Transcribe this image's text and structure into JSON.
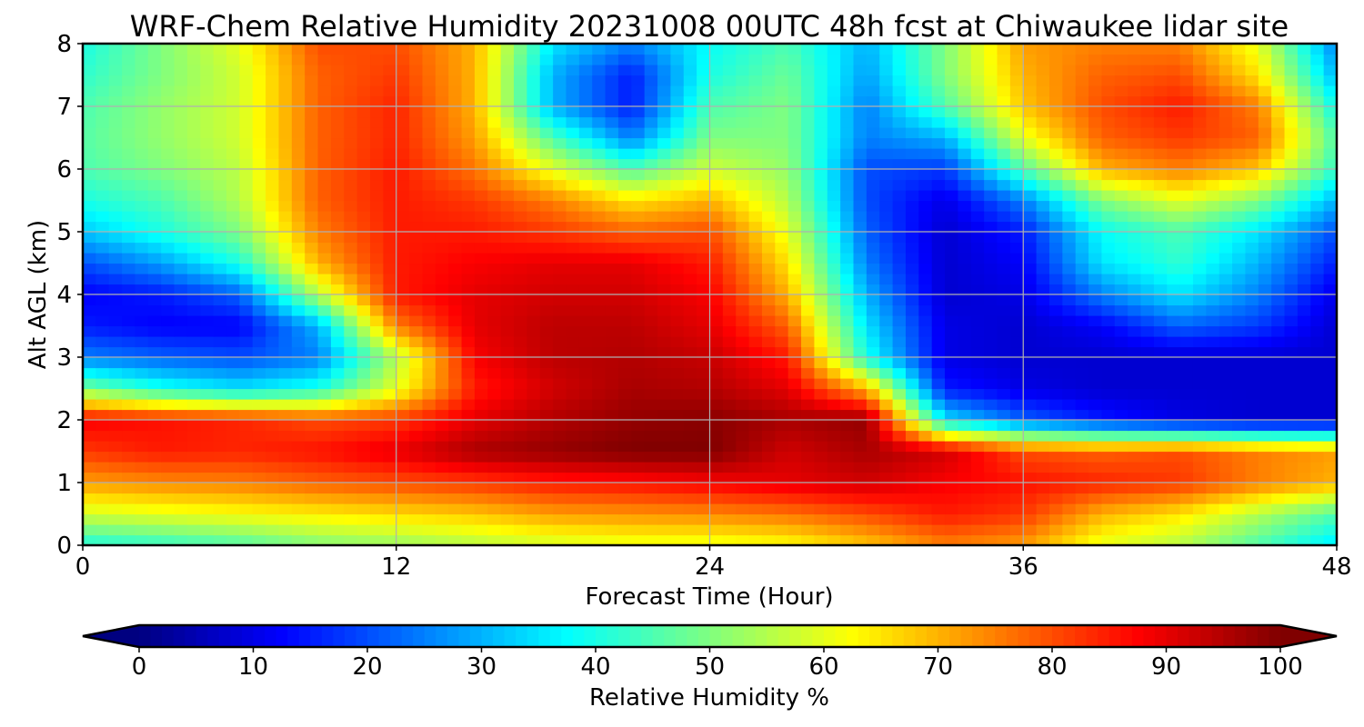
{
  "chart_data": {
    "type": "heatmap",
    "title": "WRF-Chem Relative Humidity 20231008 00UTC 48h fcst at Chiwaukee lidar site",
    "xlabel": "Forecast Time (Hour)",
    "ylabel": "Alt AGL (km)",
    "xlim": [
      0,
      48
    ],
    "ylim": [
      0,
      8
    ],
    "xticks": [
      0,
      12,
      24,
      36,
      48
    ],
    "yticks": [
      0,
      1,
      2,
      3,
      4,
      5,
      6,
      7,
      8
    ],
    "grid": true,
    "colormap": "jet",
    "z_units": "Relative Humidity %",
    "colorbar": {
      "label": "Relative Humidity %",
      "range": [
        0,
        100
      ],
      "ticks": [
        0,
        10,
        20,
        30,
        40,
        50,
        60,
        70,
        80,
        90,
        100
      ],
      "extend": "both",
      "orientation": "horizontal",
      "placement": "bottom"
    },
    "x": [
      0,
      3,
      6,
      9,
      12,
      15,
      18,
      21,
      24,
      27,
      30,
      33,
      36,
      39,
      42,
      45,
      48
    ],
    "y": [
      0,
      0.5,
      1,
      1.5,
      2,
      2.5,
      3,
      3.5,
      4,
      4.5,
      5,
      5.5,
      6,
      6.5,
      7,
      7.5,
      8
    ],
    "z": [
      [
        40,
        42,
        45,
        50,
        52,
        55,
        58,
        60,
        60,
        62,
        68,
        75,
        72,
        60,
        55,
        45,
        35
      ],
      [
        58,
        60,
        62,
        64,
        66,
        68,
        72,
        73,
        74,
        76,
        80,
        85,
        82,
        70,
        65,
        55,
        45
      ],
      [
        72,
        74,
        75,
        78,
        80,
        82,
        85,
        86,
        88,
        90,
        92,
        88,
        86,
        84,
        82,
        75,
        70
      ],
      [
        82,
        85,
        84,
        86,
        90,
        96,
        98,
        100,
        100,
        92,
        96,
        92,
        80,
        78,
        80,
        75,
        72
      ],
      [
        88,
        86,
        84,
        80,
        82,
        90,
        95,
        98,
        99,
        96,
        98,
        35,
        22,
        15,
        10,
        8,
        8
      ],
      [
        50,
        40,
        35,
        40,
        60,
        85,
        92,
        96,
        95,
        90,
        70,
        15,
        10,
        8,
        8,
        8,
        8
      ],
      [
        25,
        22,
        20,
        25,
        55,
        88,
        94,
        95,
        93,
        85,
        40,
        10,
        8,
        8,
        8,
        8,
        8
      ],
      [
        15,
        12,
        12,
        30,
        75,
        90,
        94,
        94,
        90,
        78,
        35,
        10,
        8,
        12,
        22,
        18,
        8
      ],
      [
        12,
        15,
        22,
        55,
        85,
        90,
        92,
        92,
        88,
        70,
        30,
        8,
        10,
        25,
        35,
        25,
        10
      ],
      [
        20,
        28,
        40,
        70,
        85,
        88,
        90,
        90,
        85,
        65,
        25,
        8,
        12,
        35,
        42,
        30,
        15
      ],
      [
        32,
        40,
        50,
        75,
        85,
        85,
        82,
        78,
        80,
        60,
        22,
        8,
        15,
        38,
        45,
        35,
        20
      ],
      [
        40,
        45,
        55,
        78,
        85,
        82,
        75,
        65,
        70,
        55,
        20,
        10,
        25,
        50,
        60,
        50,
        30
      ],
      [
        45,
        50,
        56,
        78,
        85,
        76,
        60,
        45,
        58,
        52,
        20,
        18,
        45,
        70,
        75,
        68,
        42
      ],
      [
        46,
        52,
        58,
        78,
        84,
        72,
        45,
        25,
        50,
        50,
        25,
        30,
        60,
        78,
        82,
        78,
        45
      ],
      [
        45,
        52,
        58,
        78,
        84,
        70,
        30,
        15,
        45,
        50,
        25,
        45,
        68,
        80,
        85,
        75,
        38
      ],
      [
        42,
        50,
        58,
        78,
        82,
        70,
        30,
        15,
        40,
        48,
        28,
        50,
        70,
        78,
        80,
        65,
        30
      ],
      [
        40,
        50,
        60,
        80,
        80,
        70,
        35,
        25,
        38,
        45,
        30,
        50,
        72,
        75,
        75,
        60,
        25
      ]
    ]
  }
}
